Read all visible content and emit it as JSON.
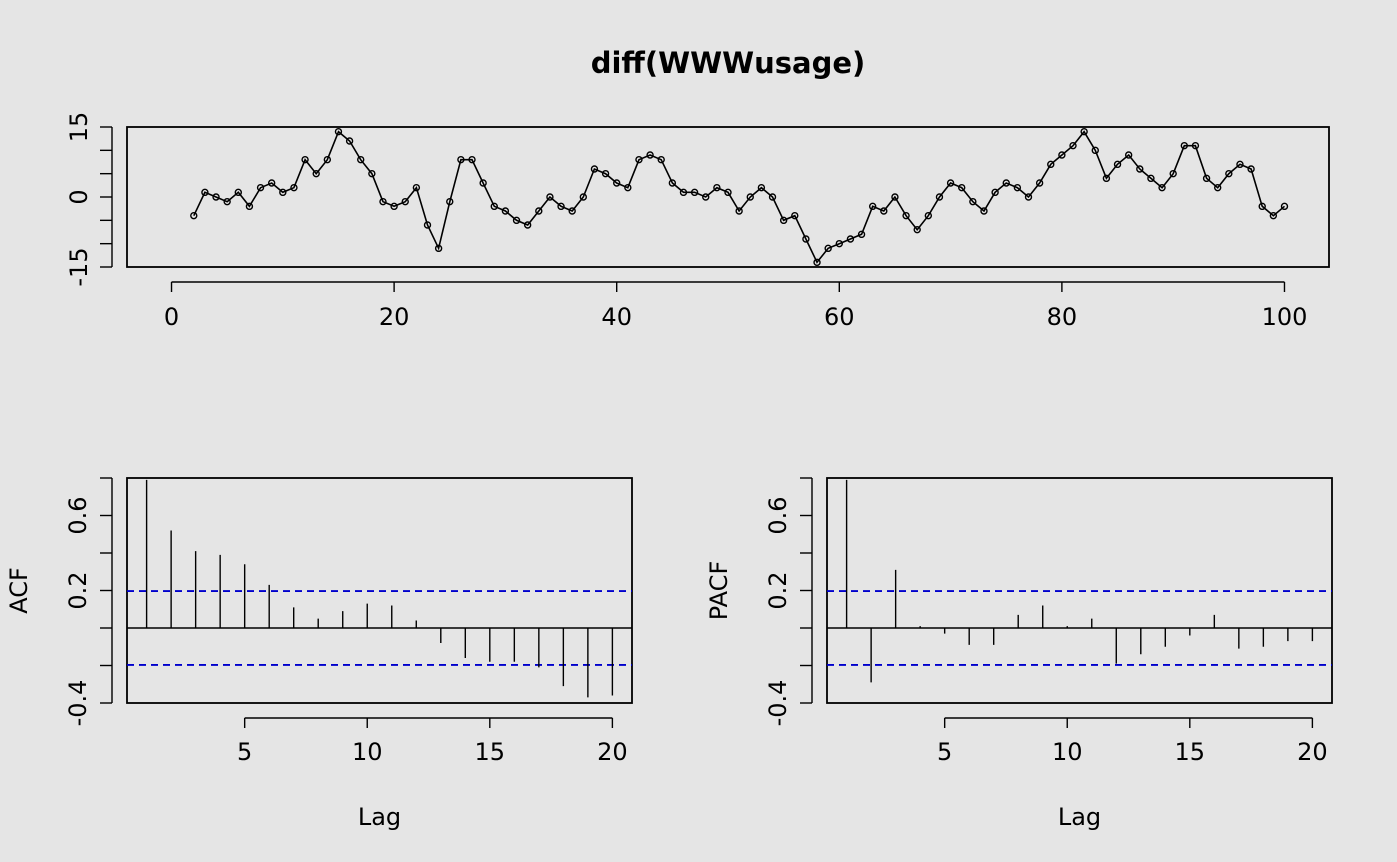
{
  "chart_data": [
    {
      "type": "line",
      "title": "diff(WWWusage)",
      "xlabel": "",
      "ylabel": "",
      "x": [
        2,
        3,
        4,
        5,
        6,
        7,
        8,
        9,
        10,
        11,
        12,
        13,
        14,
        15,
        16,
        17,
        18,
        19,
        20,
        21,
        22,
        23,
        24,
        25,
        26,
        27,
        28,
        29,
        30,
        31,
        32,
        33,
        34,
        35,
        36,
        37,
        38,
        39,
        40,
        41,
        42,
        43,
        44,
        45,
        46,
        47,
        48,
        49,
        50,
        51,
        52,
        53,
        54,
        55,
        56,
        57,
        58,
        59,
        60,
        61,
        62,
        63,
        64,
        65,
        66,
        67,
        68,
        69,
        70,
        71,
        72,
        73,
        74,
        75,
        76,
        77,
        78,
        79,
        80,
        81,
        82,
        83,
        84,
        85,
        86,
        87,
        88,
        89,
        90,
        91,
        92,
        93,
        94,
        95,
        96,
        97,
        98,
        99,
        100
      ],
      "y": [
        -4,
        1,
        0,
        -1,
        1,
        -2,
        2,
        3,
        1,
        2,
        8,
        5,
        8,
        14,
        12,
        8,
        5,
        -1,
        -2,
        -1,
        2,
        -6,
        -11,
        -1,
        8,
        8,
        3,
        -2,
        -3,
        -5,
        -6,
        -3,
        0,
        -2,
        -3,
        0,
        6,
        5,
        3,
        2,
        8,
        9,
        8,
        3,
        1,
        1,
        0,
        2,
        1,
        -3,
        0,
        2,
        0,
        -5,
        -4,
        -9,
        -14,
        -11,
        -10,
        -9,
        -8,
        -2,
        -3,
        0,
        -4,
        -7,
        -4,
        0,
        3,
        2,
        -1,
        -3,
        1,
        3,
        2,
        0,
        3,
        7,
        9,
        11,
        14,
        10,
        4,
        7,
        9,
        6,
        4,
        2,
        5,
        11,
        11,
        4,
        2,
        5,
        7,
        6,
        -2,
        -4,
        -2
      ],
      "xlim": [
        0,
        100
      ],
      "ylim": [
        -15,
        15
      ],
      "xticks": [
        0,
        20,
        40,
        60,
        80,
        100
      ],
      "yticks": [
        -15,
        -10,
        -5,
        0,
        5,
        10,
        15
      ],
      "ytick_labels": [
        "-15",
        "",
        "",
        "0",
        "",
        "",
        "15"
      ],
      "grid": false
    },
    {
      "type": "bar",
      "title": "",
      "xlabel": "Lag",
      "ylabel": "ACF",
      "x": [
        1,
        2,
        3,
        4,
        5,
        6,
        7,
        8,
        9,
        10,
        11,
        12,
        13,
        14,
        15,
        16,
        17,
        18,
        19,
        20
      ],
      "values": [
        0.79,
        0.52,
        0.41,
        0.39,
        0.34,
        0.23,
        0.11,
        0.05,
        0.09,
        0.13,
        0.12,
        0.04,
        -0.08,
        -0.16,
        -0.18,
        -0.18,
        -0.21,
        -0.31,
        -0.37,
        -0.36
      ],
      "confidence": 0.197,
      "xticks": [
        5,
        10,
        15,
        20
      ],
      "yticks": [
        -0.4,
        -0.2,
        0,
        0.2,
        0.4,
        0.6,
        0.8
      ],
      "ytick_labels": [
        "-0.4",
        "",
        "",
        "0.2",
        "",
        "0.6",
        ""
      ],
      "xlim": [
        0.2,
        20.8
      ],
      "ylim": [
        -0.4,
        0.8
      ],
      "grid": false
    },
    {
      "type": "bar",
      "title": "",
      "xlabel": "Lag",
      "ylabel": "PACF",
      "x": [
        1,
        2,
        3,
        4,
        5,
        6,
        7,
        8,
        9,
        10,
        11,
        12,
        13,
        14,
        15,
        16,
        17,
        18,
        19,
        20
      ],
      "values": [
        0.79,
        -0.29,
        0.31,
        0.01,
        -0.03,
        -0.09,
        -0.09,
        0.07,
        0.12,
        0.01,
        0.05,
        -0.19,
        -0.14,
        -0.1,
        -0.04,
        0.07,
        -0.11,
        -0.1,
        -0.07,
        -0.07
      ],
      "confidence": 0.197,
      "xticks": [
        5,
        10,
        15,
        20
      ],
      "yticks": [
        -0.4,
        -0.2,
        0,
        0.2,
        0.4,
        0.6,
        0.8
      ],
      "ytick_labels": [
        "-0.4",
        "",
        "",
        "0.2",
        "",
        "0.6",
        ""
      ],
      "xlim": [
        0.2,
        20.8
      ],
      "ylim": [
        -0.4,
        0.8
      ],
      "grid": false
    }
  ],
  "colors": {
    "background": "#e5e5e5",
    "ink": "#000000",
    "confidence_line": "#0000cc"
  }
}
